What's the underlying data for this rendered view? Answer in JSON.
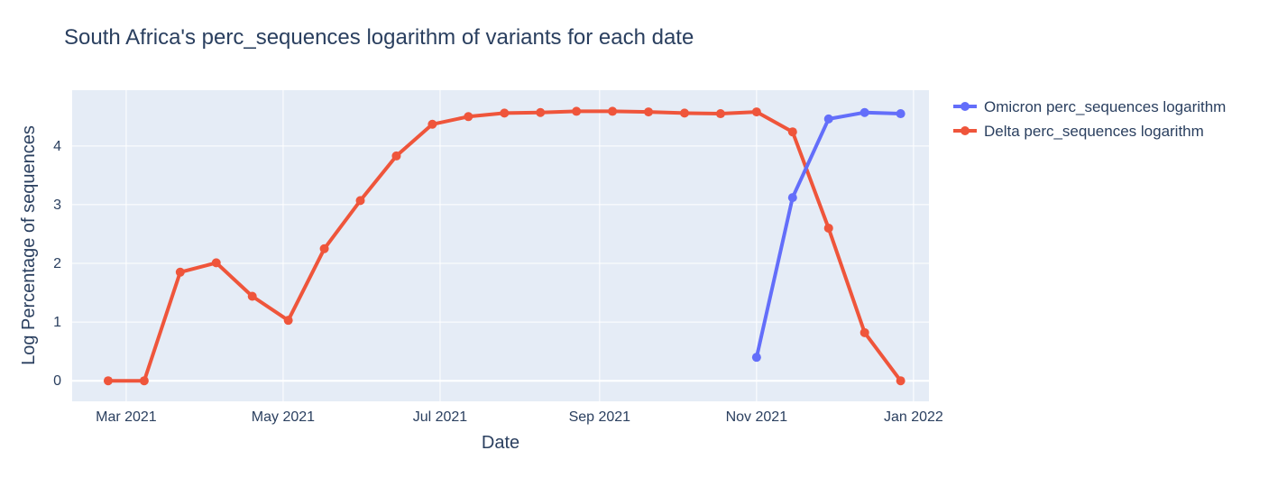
{
  "chart_data": {
    "type": "line",
    "title": "South Africa's perc_sequences logarithm of variants for each date",
    "xlabel": "Date",
    "ylabel": "Log Percentage of sequences",
    "x_ticks": [
      {
        "date": "2021-03-01",
        "label": "Mar 2021"
      },
      {
        "date": "2021-05-01",
        "label": "May 2021"
      },
      {
        "date": "2021-07-01",
        "label": "Jul 2021"
      },
      {
        "date": "2021-09-01",
        "label": "Sep 2021"
      },
      {
        "date": "2021-11-01",
        "label": "Nov 2021"
      },
      {
        "date": "2022-01-01",
        "label": "Jan 2022"
      }
    ],
    "y_ticks": [
      0,
      1,
      2,
      3,
      4
    ],
    "xlim": [
      "2021-02-08",
      "2022-01-07"
    ],
    "ylim": [
      -0.35,
      4.95
    ],
    "grid": true,
    "legend_position": "right",
    "series": [
      {
        "name": "Omicron perc_sequences logarithm",
        "color": "#636efa",
        "x": [
          "2021-11-01",
          "2021-11-15",
          "2021-11-29",
          "2021-12-13",
          "2021-12-27"
        ],
        "y": [
          0.4,
          3.12,
          4.46,
          4.57,
          4.55
        ]
      },
      {
        "name": "Delta perc_sequences logarithm",
        "color": "#ef553b",
        "x": [
          "2021-02-22",
          "2021-03-08",
          "2021-03-22",
          "2021-04-05",
          "2021-04-19",
          "2021-05-03",
          "2021-05-17",
          "2021-05-31",
          "2021-06-14",
          "2021-06-28",
          "2021-07-12",
          "2021-07-26",
          "2021-08-09",
          "2021-08-23",
          "2021-09-06",
          "2021-09-20",
          "2021-10-04",
          "2021-10-18",
          "2021-11-01",
          "2021-11-15",
          "2021-11-29",
          "2021-12-13",
          "2021-12-27"
        ],
        "y": [
          0.0,
          0.0,
          1.85,
          2.01,
          1.44,
          1.03,
          2.25,
          3.07,
          3.83,
          4.37,
          4.5,
          4.56,
          4.57,
          4.59,
          4.59,
          4.58,
          4.56,
          4.55,
          4.58,
          4.24,
          2.6,
          0.82,
          0.0
        ]
      }
    ]
  }
}
